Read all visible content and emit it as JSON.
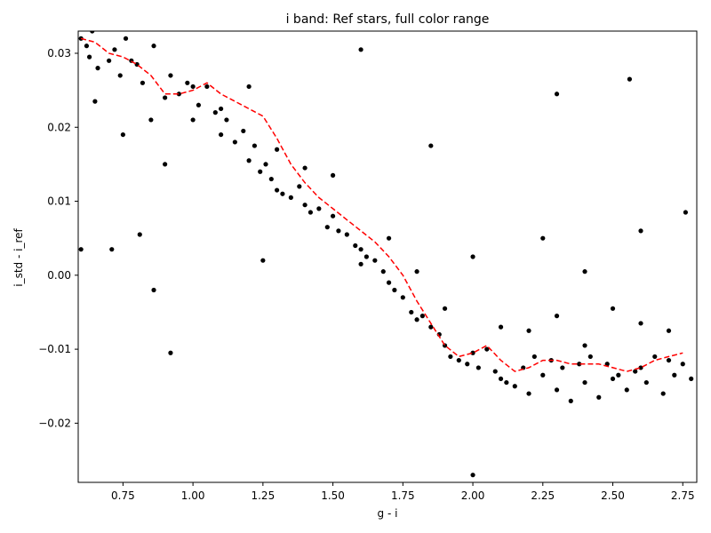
{
  "chart_data": {
    "type": "scatter",
    "title": "i band: Ref stars, full color range",
    "xlabel": "g - i",
    "ylabel": "i_std - i_ref",
    "xlim": [
      0.59,
      2.8
    ],
    "ylim": [
      -0.028,
      0.033
    ],
    "grid": false,
    "xticks": [
      0.75,
      1.0,
      1.25,
      1.5,
      1.75,
      2.0,
      2.25,
      2.5,
      2.75
    ],
    "xtick_labels": [
      "0.75",
      "1.00",
      "1.25",
      "1.50",
      "1.75",
      "2.00",
      "2.25",
      "2.50",
      "2.75"
    ],
    "yticks": [
      0.03,
      0.02,
      0.01,
      0.0,
      -0.01,
      -0.02
    ],
    "ytick_labels": [
      "0.03",
      "0.02",
      "0.01",
      "0.00",
      "−0.01",
      "−0.02"
    ],
    "colors": {
      "points": "#000000",
      "trend": "#ff0000"
    },
    "series": [
      {
        "kind": "points",
        "x": [
          0.6,
          0.62,
          0.63,
          0.64,
          0.66,
          0.7,
          0.72,
          0.74,
          0.76,
          0.78,
          0.8,
          0.82,
          0.86,
          0.9,
          0.92,
          0.95,
          0.98,
          1.0,
          1.02,
          1.05,
          1.08,
          1.1,
          1.12,
          1.15,
          1.18,
          1.2,
          1.22,
          1.24,
          1.26,
          1.28,
          1.3,
          1.32,
          1.35,
          1.38,
          1.4,
          1.42,
          1.45,
          1.48,
          1.5,
          1.52,
          1.55,
          1.58,
          1.6,
          1.62,
          1.65,
          1.68,
          1.7,
          1.72,
          1.75,
          1.78,
          1.8,
          1.82,
          1.85,
          1.88,
          1.9,
          1.92,
          1.95,
          1.98,
          2.0,
          2.02,
          2.05,
          2.08,
          2.1,
          2.12,
          2.15,
          2.18,
          2.2,
          2.22,
          2.25,
          2.28,
          2.3,
          2.32,
          2.35,
          2.38,
          2.4,
          2.42,
          2.45,
          2.48,
          2.5,
          2.52,
          2.55,
          2.58,
          2.6,
          2.62,
          2.65,
          2.68,
          2.7,
          2.72,
          2.75,
          2.78,
          0.65,
          0.75,
          0.85,
          0.9,
          1.0,
          1.1,
          1.2,
          1.3,
          1.4,
          1.5,
          1.6,
          1.7,
          1.8,
          1.9,
          2.0,
          2.1,
          2.2,
          2.3,
          2.4,
          2.5,
          2.6,
          2.7,
          0.6,
          0.71,
          0.81,
          0.86,
          0.92,
          1.25,
          1.6,
          1.85,
          2.56,
          2.3,
          2.0,
          2.25,
          2.4,
          2.6,
          2.76
        ],
        "y": [
          0.032,
          0.031,
          0.0295,
          0.033,
          0.028,
          0.029,
          0.0305,
          0.027,
          0.032,
          0.029,
          0.0285,
          0.026,
          0.031,
          0.024,
          0.027,
          0.0245,
          0.026,
          0.0255,
          0.023,
          0.0255,
          0.022,
          0.0225,
          0.021,
          0.018,
          0.0195,
          0.0155,
          0.0175,
          0.014,
          0.015,
          0.013,
          0.0115,
          0.011,
          0.0105,
          0.012,
          0.0095,
          0.0085,
          0.009,
          0.0065,
          0.008,
          0.006,
          0.0055,
          0.004,
          0.0035,
          0.0025,
          0.002,
          0.0005,
          -0.001,
          -0.002,
          -0.003,
          -0.005,
          -0.006,
          -0.0055,
          -0.007,
          -0.008,
          -0.0095,
          -0.011,
          -0.0115,
          -0.012,
          -0.0105,
          -0.0125,
          -0.01,
          -0.013,
          -0.014,
          -0.0145,
          -0.015,
          -0.0125,
          -0.016,
          -0.011,
          -0.0135,
          -0.0115,
          -0.0155,
          -0.0125,
          -0.017,
          -0.012,
          -0.0145,
          -0.011,
          -0.0165,
          -0.012,
          -0.014,
          -0.0135,
          -0.0155,
          -0.013,
          -0.0125,
          -0.0145,
          -0.011,
          -0.016,
          -0.0115,
          -0.0135,
          -0.012,
          -0.014,
          0.0235,
          0.019,
          0.021,
          0.015,
          0.021,
          0.019,
          0.0255,
          0.017,
          0.0145,
          0.0135,
          0.0015,
          0.005,
          0.0005,
          -0.0045,
          0.0025,
          -0.007,
          -0.0075,
          -0.0055,
          -0.0095,
          -0.0045,
          -0.0065,
          -0.0075,
          0.0035,
          0.0035,
          0.0055,
          -0.002,
          -0.0105,
          0.002,
          0.0305,
          0.0175,
          0.0265,
          0.0245,
          -0.027,
          0.005,
          0.0005,
          0.006,
          0.0085
        ],
        "note": ""
      },
      {
        "kind": "trend",
        "x": [
          0.6,
          0.65,
          0.7,
          0.75,
          0.8,
          0.85,
          0.9,
          0.95,
          1.0,
          1.05,
          1.1,
          1.15,
          1.2,
          1.25,
          1.3,
          1.35,
          1.4,
          1.45,
          1.5,
          1.55,
          1.6,
          1.65,
          1.7,
          1.75,
          1.8,
          1.85,
          1.9,
          1.95,
          2.0,
          2.05,
          2.1,
          2.15,
          2.2,
          2.25,
          2.3,
          2.35,
          2.4,
          2.45,
          2.5,
          2.55,
          2.6,
          2.65,
          2.7,
          2.75
        ],
        "y": [
          0.032,
          0.0315,
          0.03,
          0.0295,
          0.0285,
          0.027,
          0.0245,
          0.0245,
          0.025,
          0.026,
          0.0245,
          0.0235,
          0.0225,
          0.0215,
          0.0185,
          0.015,
          0.0125,
          0.0105,
          0.009,
          0.0075,
          0.006,
          0.0045,
          0.0025,
          0.0,
          -0.0035,
          -0.0065,
          -0.0095,
          -0.011,
          -0.0105,
          -0.0095,
          -0.0115,
          -0.013,
          -0.0125,
          -0.0115,
          -0.0115,
          -0.012,
          -0.012,
          -0.012,
          -0.0125,
          -0.013,
          -0.0125,
          -0.0115,
          -0.011,
          -0.0105
        ]
      }
    ]
  }
}
